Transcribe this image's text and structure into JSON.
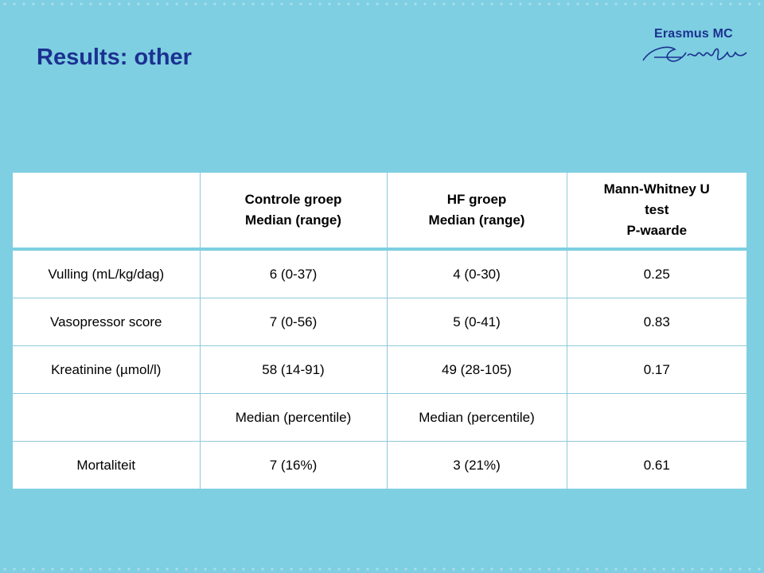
{
  "title": "Results: other",
  "logo": {
    "text": "Erasmus MC",
    "signature": "Erafus"
  },
  "table": {
    "headers": [
      {
        "lines": []
      },
      {
        "lines": [
          "Controle groep",
          "Median (range)"
        ]
      },
      {
        "lines": [
          "HF groep",
          "Median (range)"
        ]
      },
      {
        "lines": [
          "Mann-Whitney U",
          "test",
          "P-waarde"
        ]
      }
    ],
    "rows": [
      [
        "Vulling (mL/kg/dag)",
        "6 (0-37)",
        "4 (0-30)",
        "0.25"
      ],
      [
        "Vasopressor score",
        "7 (0-56)",
        "5 (0-41)",
        "0.83"
      ],
      [
        "Kreatinine (µmol/l)",
        "58 (14-91)",
        "49 (28-105)",
        "0.17"
      ],
      [
        "",
        "Median (percentile)",
        "Median (percentile)",
        ""
      ],
      [
        "Mortaliteit",
        "7 (16%)",
        "3 (21%)",
        "0.61"
      ]
    ]
  },
  "colors": {
    "background": "#7ecfe1",
    "title": "#1b3191",
    "table_bg": "#ffffff"
  }
}
